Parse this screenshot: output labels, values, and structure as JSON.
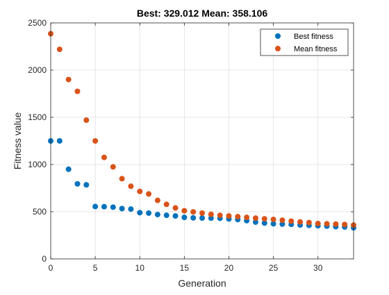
{
  "chart_data": {
    "type": "scatter",
    "title": "Best: 329.012 Mean: 358.106",
    "xlabel": "Generation",
    "ylabel": "Fitness value",
    "xlim": [
      0,
      34
    ],
    "ylim": [
      0,
      2500
    ],
    "xticks": [
      0,
      5,
      10,
      15,
      20,
      25,
      30
    ],
    "yticks": [
      0,
      500,
      1000,
      1500,
      2000,
      2500
    ],
    "grid": true,
    "legend_position": "top-right",
    "x": [
      0,
      1,
      2,
      3,
      4,
      5,
      6,
      7,
      8,
      9,
      10,
      11,
      12,
      13,
      14,
      15,
      16,
      17,
      18,
      19,
      20,
      21,
      22,
      23,
      24,
      25,
      26,
      27,
      28,
      29,
      30,
      31,
      32,
      33,
      34
    ],
    "series": [
      {
        "name": "Best fitness",
        "color": "#0072BD",
        "values": [
          1250,
          1250,
          950,
          795,
          785,
          555,
          553,
          548,
          533,
          528,
          490,
          485,
          470,
          462,
          455,
          440,
          435,
          433,
          432,
          430,
          423,
          417,
          405,
          390,
          380,
          372,
          369,
          366,
          359,
          355,
          351,
          347,
          342,
          338,
          330
        ]
      },
      {
        "name": "Mean fitness",
        "color": "#D95319",
        "values": [
          2385,
          2220,
          1900,
          1775,
          1470,
          1250,
          1075,
          975,
          850,
          770,
          715,
          688,
          620,
          578,
          540,
          510,
          498,
          485,
          472,
          462,
          455,
          448,
          440,
          432,
          425,
          418,
          410,
          400,
          392,
          385,
          375,
          372,
          369,
          365,
          358
        ]
      }
    ]
  }
}
